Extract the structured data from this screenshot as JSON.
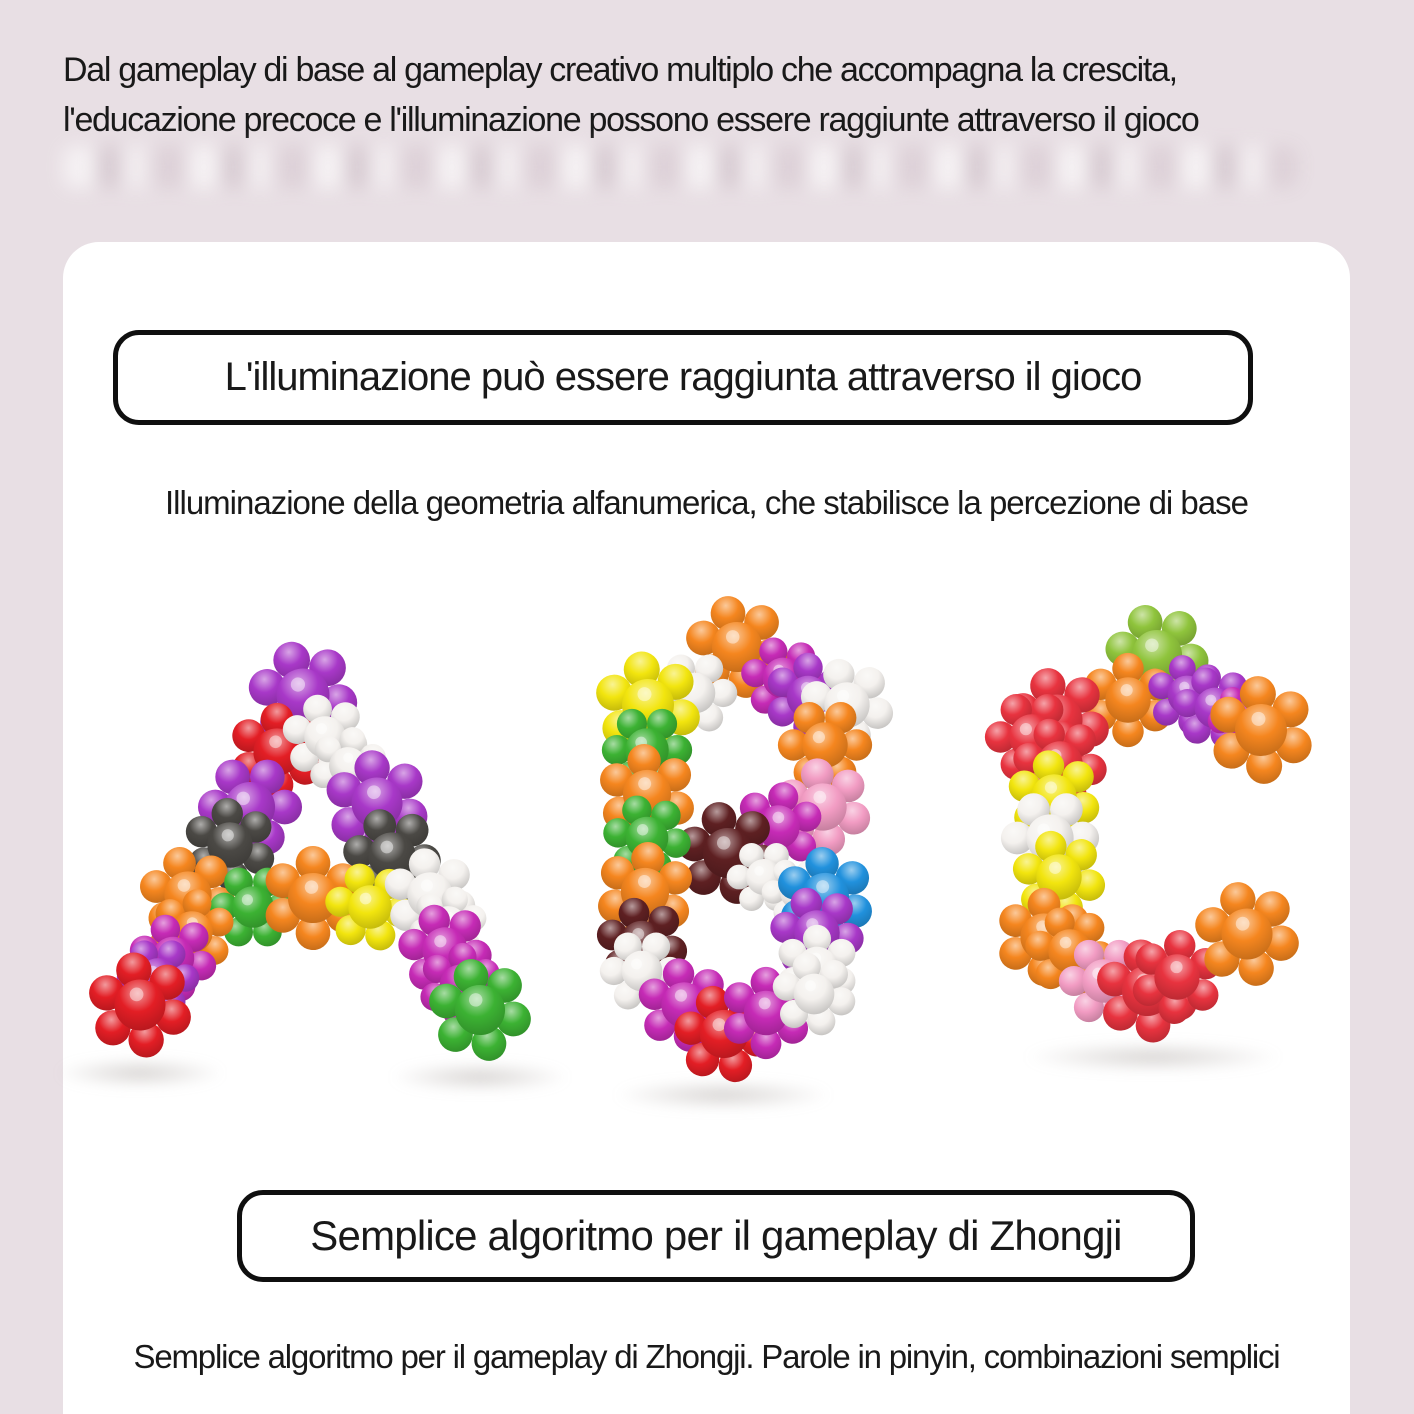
{
  "page": {
    "background": "#e8dfe4",
    "card_background": "#ffffff",
    "text_color": "#191919",
    "banner_border_color": "#0f0f0f"
  },
  "header": {
    "line1": "Dal gameplay di base al gameplay creativo multiplo che accompagna la crescita,",
    "line2": "l'educazione precoce e l'illuminazione possono essere raggiunte attraverso il gioco"
  },
  "section1": {
    "banner_label": "L'illuminazione può essere raggiunta attraverso il gioco",
    "subtitle": "Illuminazione della geometria alfanumerica, che stabilisce la percezione di base"
  },
  "section2": {
    "banner_label": "Semplice algoritmo per il gameplay di Zhongji",
    "subtitle": "Semplice algoritmo per il gameplay di Zhongji. Parole in pinyin, combinazioni semplici"
  },
  "illustration": {
    "depicted_letters": [
      "A",
      "B",
      "C"
    ],
    "palette": {
      "purple": "#a838c8",
      "magenta": "#c62bb6",
      "red": "#e31e25",
      "red2": "#e8333f",
      "white": "#f4f1ee",
      "gray": "#4b4945",
      "orange": "#f5861f",
      "green": "#3cb233",
      "lime": "#8fc43c",
      "yellow": "#f2e50e",
      "pink": "#f29cc3",
      "brown": "#5e2022",
      "blue": "#2191dd"
    },
    "flowers": {
      "A": [
        [
          240,
          85,
          112,
          "purple",
          12
        ],
        [
          214,
          142,
          100,
          "red",
          30
        ],
        [
          262,
          127,
          88,
          "white",
          15
        ],
        [
          285,
          156,
          80,
          "white",
          40
        ],
        [
          187,
          197,
          106,
          "purple",
          0
        ],
        [
          314,
          193,
          108,
          "purple",
          22
        ],
        [
          167,
          235,
          96,
          "gray",
          25
        ],
        [
          329,
          246,
          100,
          "gray",
          8
        ],
        [
          125,
          285,
          100,
          "orange",
          15
        ],
        [
          190,
          297,
          88,
          "green",
          0
        ],
        [
          250,
          288,
          106,
          "orange",
          30
        ],
        [
          307,
          297,
          92,
          "yellow",
          10
        ],
        [
          367,
          285,
          96,
          "white",
          20
        ],
        [
          385,
          315,
          80,
          "white",
          45
        ],
        [
          129,
          322,
          88,
          "orange",
          40
        ],
        [
          110,
          348,
          90,
          "magenta",
          15
        ],
        [
          95,
          368,
          84,
          "purple",
          0
        ],
        [
          77,
          395,
          108,
          "red",
          20
        ],
        [
          382,
          340,
          96,
          "magenta",
          10
        ],
        [
          397,
          375,
          86,
          "magenta",
          35
        ],
        [
          417,
          400,
          106,
          "green",
          15
        ]
      ],
      "B": [
        [
          674,
          37,
          106,
          "orange",
          15
        ],
        [
          632,
          83,
          86,
          "white",
          0
        ],
        [
          585,
          95,
          110,
          "yellow",
          20
        ],
        [
          720,
          68,
          86,
          "magenta",
          10
        ],
        [
          745,
          87,
          90,
          "purple",
          30
        ],
        [
          784,
          95,
          96,
          "white",
          15
        ],
        [
          762,
          135,
          96,
          "orange",
          0
        ],
        [
          760,
          197,
          100,
          "pink",
          20
        ],
        [
          715,
          217,
          92,
          "magenta",
          40
        ],
        [
          665,
          243,
          106,
          "brown",
          15
        ],
        [
          701,
          267,
          76,
          "white",
          0
        ],
        [
          734,
          282,
          72,
          "white",
          0
        ],
        [
          762,
          287,
          102,
          "blue",
          25
        ],
        [
          754,
          323,
          96,
          "purple",
          10
        ],
        [
          754,
          357,
          86,
          "white",
          30
        ],
        [
          584,
          140,
          92,
          "green",
          0
        ],
        [
          584,
          184,
          102,
          "orange",
          25
        ],
        [
          584,
          228,
          90,
          "green",
          10
        ],
        [
          582,
          282,
          102,
          "orange",
          35
        ],
        [
          579,
          333,
          94,
          "brown",
          15
        ],
        [
          579,
          361,
          86,
          "white",
          0
        ],
        [
          621,
          395,
          96,
          "magenta",
          20
        ],
        [
          661,
          424,
          102,
          "red",
          10
        ],
        [
          703,
          403,
          94,
          "magenta",
          30
        ],
        [
          751,
          384,
          86,
          "white",
          15
        ]
      ],
      "C": [
        [
          1094,
          45,
          106,
          "lime",
          10
        ],
        [
          1065,
          90,
          96,
          "orange",
          30
        ],
        [
          994,
          110,
          108,
          "red2",
          15
        ],
        [
          969,
          127,
          96,
          "red2",
          0
        ],
        [
          1124,
          85,
          82,
          "purple",
          20
        ],
        [
          1152,
          98,
          86,
          "purple",
          10
        ],
        [
          1182,
          111,
          76,
          "magenta",
          0
        ],
        [
          1198,
          120,
          110,
          "orange",
          25
        ],
        [
          997,
          154,
          96,
          "red2",
          10
        ],
        [
          991,
          187,
          96,
          "yellow",
          20
        ],
        [
          987,
          228,
          100,
          "white",
          0
        ],
        [
          996,
          267,
          96,
          "yellow",
          15
        ],
        [
          981,
          327,
          100,
          "orange",
          30
        ],
        [
          1007,
          341,
          92,
          "orange",
          10
        ],
        [
          1041,
          371,
          92,
          "pink",
          0
        ],
        [
          1084,
          381,
          106,
          "red2",
          20
        ],
        [
          1114,
          367,
          96,
          "red2",
          35
        ],
        [
          1184,
          324,
          108,
          "orange",
          15
        ]
      ]
    },
    "ground_shadows": [
      [
        77,
        448,
        170
      ],
      [
        417,
        452,
        180
      ],
      [
        660,
        470,
        220
      ],
      [
        1090,
        432,
        260
      ]
    ]
  }
}
